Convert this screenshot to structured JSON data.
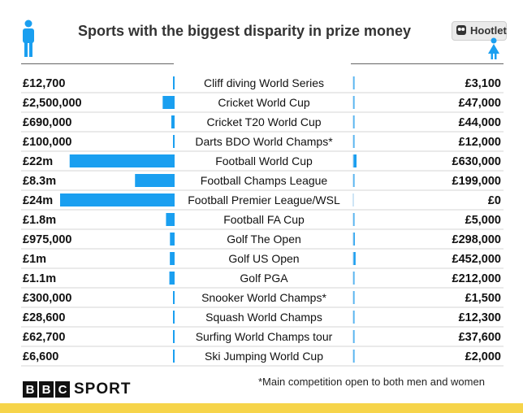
{
  "title": "Sports with the biggest disparity in prize money",
  "badge": {
    "label": "Hootlet",
    "icon": "owl-icon"
  },
  "icons": {
    "left": "male-figure-icon",
    "right": "female-figure-icon"
  },
  "colors": {
    "bar": "#1a9ff0",
    "accent": "#f6d44a"
  },
  "footnote": "*Main competition open to both men and women",
  "logo": {
    "b1": "B",
    "b2": "B",
    "c": "C",
    "sport": "SPORT"
  },
  "chart_data": {
    "type": "bar",
    "categories": [
      "Cliff diving World Series",
      "Cricket World Cup",
      "Cricket T20 World Cup",
      "Darts BDO World Champs*",
      "Football World Cup",
      "Football Champs League",
      "Football Premier League/WSL",
      "Football FA Cup",
      "Golf The Open",
      "Golf US Open",
      "Golf PGA",
      "Snooker World Champs*",
      "Squash World Champs",
      "Surfing World Champs tour",
      "Ski Jumping World Cup"
    ],
    "men_labels": [
      "£12,700",
      "£2,500,000",
      "£690,000",
      "£100,000",
      "£22m",
      "£8.3m",
      "£24m",
      "£1.8m",
      "£975,000",
      "£1m",
      "£1.1m",
      "£300,000",
      "£28,600",
      "£62,700",
      "£6,600"
    ],
    "women_labels": [
      "£3,100",
      "£47,000",
      "£44,000",
      "£12,000",
      "£630,000",
      "£199,000",
      "£0",
      "£5,000",
      "£298,000",
      "£452,000",
      "£212,000",
      "£1,500",
      "£12,300",
      "£37,600",
      "£2,000"
    ],
    "series": [
      {
        "values": [
          12700,
          2500000,
          690000,
          100000,
          22000000,
          8300000,
          24000000,
          1800000,
          975000,
          1000000,
          1100000,
          300000,
          28600,
          62700,
          6600
        ]
      },
      {
        "values": [
          3100,
          47000,
          44000,
          12000,
          630000,
          199000,
          0,
          5000,
          298000,
          452000,
          212000,
          1500,
          12300,
          37600,
          2000
        ]
      }
    ]
  }
}
